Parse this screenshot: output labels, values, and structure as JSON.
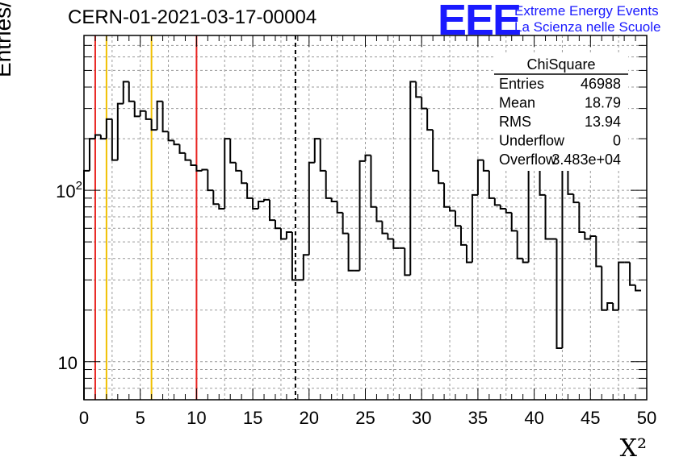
{
  "header": {
    "title": "CERN-01-2021-03-17-00004",
    "logo_text": "EEE",
    "logo_line1": "Extreme Energy Events",
    "logo_line2": "La Scienza nelle Scuole"
  },
  "stats": {
    "name": "ChiSquare",
    "rows": [
      {
        "label": "Entries",
        "value": "46988"
      },
      {
        "label": "Mean",
        "value": "18.79"
      },
      {
        "label": "RMS",
        "value": "13.94"
      },
      {
        "label": "Underflow",
        "value": "0"
      },
      {
        "label": "Overflow",
        "value": "3.483e+04"
      }
    ]
  },
  "colors": {
    "red_line": "#e8231f",
    "yellow_line": "#f0c000",
    "logo": "#1a1aff",
    "grid": "#9a9a9a"
  },
  "chart_data": {
    "type": "bar",
    "xlabel": "X²",
    "ylabel": "Entries/bin",
    "xlim": [
      0,
      50
    ],
    "ylim": [
      6,
      800
    ],
    "log_y": true,
    "grid": true,
    "bin_width": 0.5,
    "x_ticks": [
      "0",
      "5",
      "10",
      "15",
      "20",
      "25",
      "30",
      "35",
      "40",
      "45",
      "50"
    ],
    "y_ticks": [
      {
        "value": 10,
        "label": "10"
      },
      {
        "value": 100,
        "label": "10",
        "exp": "2"
      }
    ],
    "vlines": [
      {
        "x": 1,
        "color": "red",
        "style": "solid"
      },
      {
        "x": 2,
        "color": "yellow",
        "style": "solid"
      },
      {
        "x": 6,
        "color": "yellow",
        "style": "solid"
      },
      {
        "x": 10,
        "color": "red",
        "style": "solid"
      },
      {
        "x": 18.79,
        "color": "black",
        "style": "dashed"
      }
    ],
    "values": [
      130,
      200,
      210,
      200,
      260,
      150,
      320,
      430,
      330,
      270,
      290,
      260,
      225,
      330,
      220,
      195,
      185,
      165,
      150,
      140,
      130,
      132,
      100,
      83,
      78,
      200,
      145,
      130,
      110,
      90,
      78,
      86,
      88,
      67,
      60,
      52,
      57,
      30,
      30,
      42,
      145,
      200,
      130,
      90,
      86,
      74,
      56,
      34,
      34,
      148,
      160,
      80,
      66,
      56,
      52,
      46,
      46,
      32,
      430,
      350,
      300,
      225,
      130,
      110,
      80,
      76,
      62,
      48,
      38,
      94,
      150,
      130,
      90,
      82,
      78,
      74,
      58,
      40,
      38,
      148,
      166,
      94,
      52,
      52,
      12,
      160,
      95,
      85,
      57,
      52,
      54,
      36,
      20,
      22,
      20,
      38,
      38,
      28,
      26
    ]
  }
}
